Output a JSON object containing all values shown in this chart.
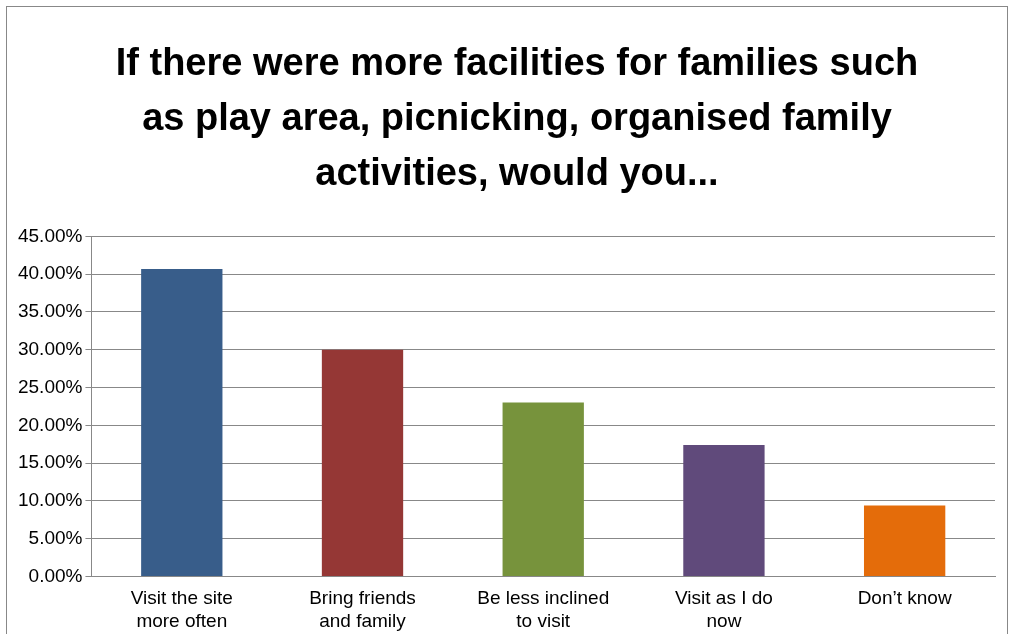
{
  "chart_data": {
    "type": "bar",
    "title": "If there were more facilities for families such as play area, picnicking, organised family activities, would you...",
    "categories": [
      "Visit the site more often",
      "Bring friends and family",
      "Be less inclined to visit",
      "Visit as I do now",
      "Don’t know"
    ],
    "values": [
      40.7,
      30.0,
      23.0,
      17.4,
      9.4
    ],
    "colors": [
      "#385d8a",
      "#953735",
      "#77933c",
      "#604a7b",
      "#e46c0a"
    ],
    "ylim": [
      0,
      45
    ],
    "yticks": [
      {
        "value": 0,
        "label": "0.00%"
      },
      {
        "value": 5,
        "label": "5.00%"
      },
      {
        "value": 10,
        "label": "10.00%"
      },
      {
        "value": 15,
        "label": "15.00%"
      },
      {
        "value": 20,
        "label": "20.00%"
      },
      {
        "value": 25,
        "label": "25.00%"
      },
      {
        "value": 30,
        "label": "30.00%"
      },
      {
        "value": 35,
        "label": "35.00%"
      },
      {
        "value": 40,
        "label": "40.00%"
      },
      {
        "value": 45,
        "label": "45.00%"
      }
    ],
    "grid": "y"
  }
}
